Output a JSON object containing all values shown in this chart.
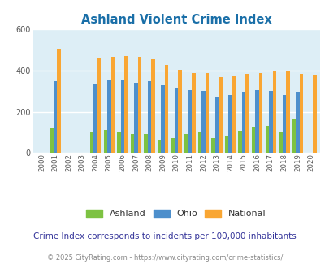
{
  "title": "Ashland Violent Crime Index",
  "years": [
    2000,
    2001,
    2002,
    2003,
    2004,
    2005,
    2006,
    2007,
    2008,
    2009,
    2010,
    2011,
    2012,
    2013,
    2014,
    2015,
    2016,
    2017,
    2018,
    2019,
    2020
  ],
  "ashland": [
    0,
    120,
    0,
    0,
    105,
    110,
    100,
    90,
    90,
    65,
    70,
    90,
    100,
    70,
    78,
    108,
    125,
    130,
    103,
    165,
    0
  ],
  "ohio": [
    0,
    350,
    0,
    0,
    338,
    352,
    352,
    342,
    350,
    330,
    315,
    305,
    300,
    268,
    282,
    295,
    303,
    300,
    280,
    295,
    0
  ],
  "national": [
    0,
    505,
    0,
    0,
    463,
    468,
    470,
    465,
    455,
    428,
    405,
    388,
    388,
    368,
    376,
    383,
    386,
    398,
    396,
    383,
    380
  ],
  "ashland_color": "#7dc242",
  "ohio_color": "#4d8fcc",
  "national_color": "#f9a633",
  "plot_bg": "#ddeef6",
  "ylim": [
    0,
    600
  ],
  "yticks": [
    0,
    200,
    400,
    600
  ],
  "subtitle": "Crime Index corresponds to incidents per 100,000 inhabitants",
  "footer": "© 2025 CityRating.com - https://www.cityrating.com/crime-statistics/",
  "title_color": "#1a6fa8",
  "subtitle_color": "#333399",
  "footer_color": "#888888",
  "grid_color": "#ffffff",
  "bar_width": 0.27,
  "figsize": [
    4.06,
    3.3
  ],
  "dpi": 100
}
